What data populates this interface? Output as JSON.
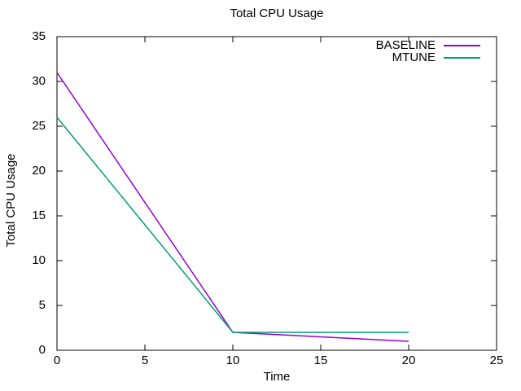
{
  "chart_data": {
    "type": "line",
    "title": "Total CPU Usage",
    "xlabel": "Time",
    "ylabel": "Total CPU Usage",
    "xlim": [
      0,
      25
    ],
    "ylim": [
      0,
      35
    ],
    "xticks": [
      0,
      5,
      10,
      15,
      20,
      25
    ],
    "yticks": [
      0,
      5,
      10,
      15,
      20,
      25,
      30,
      35
    ],
    "grid": false,
    "legend_position": "inside-top-right",
    "axis_color": "#000000",
    "background": "#ffffff",
    "series": [
      {
        "name": "BASELINE",
        "color": "#9400d3",
        "x": [
          0,
          10,
          20
        ],
        "y": [
          31,
          2,
          1
        ]
      },
      {
        "name": "MTUNE",
        "color": "#009e73",
        "x": [
          0,
          10,
          20
        ],
        "y": [
          26,
          2,
          2
        ]
      }
    ]
  }
}
